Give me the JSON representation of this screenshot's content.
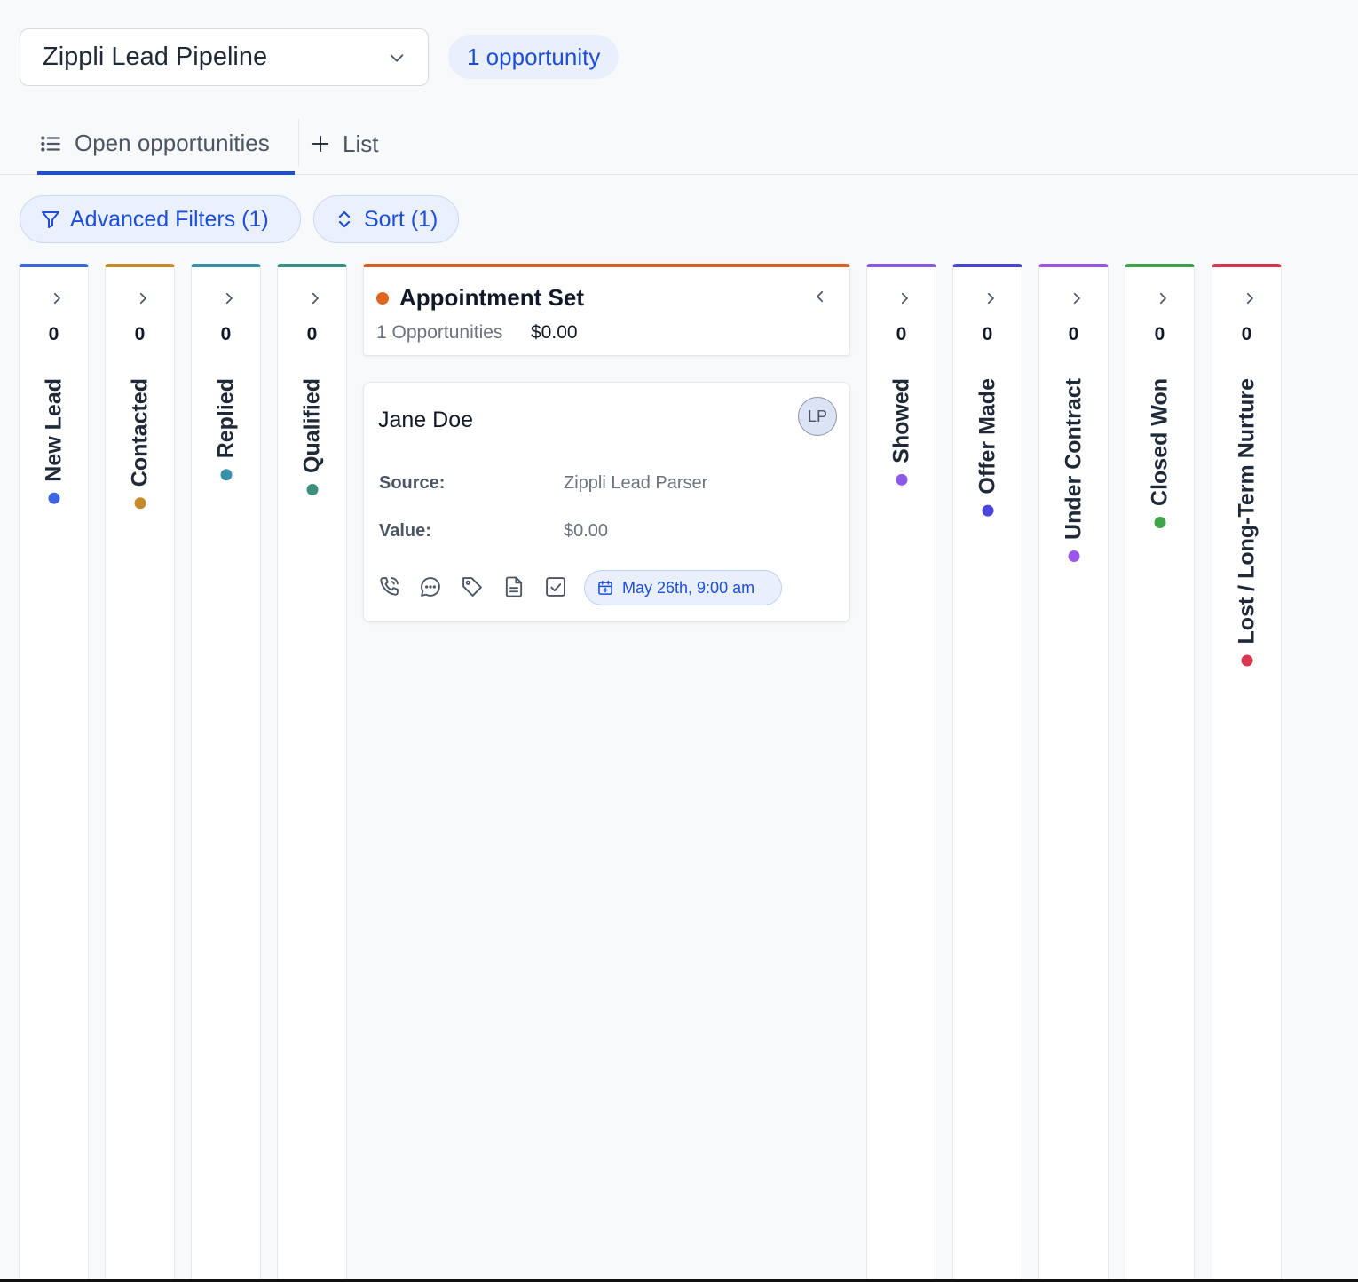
{
  "pipeline": {
    "selected": "Zippli Lead Pipeline",
    "count_label": "1 opportunity"
  },
  "tabs": {
    "open": "Open opportunities",
    "add_list": "List"
  },
  "toolbar": {
    "filters_label": "Advanced Filters (1)",
    "sort_label": "Sort (1)"
  },
  "columns": [
    {
      "name": "New Lead",
      "count": "0",
      "color": "#3b66e0"
    },
    {
      "name": "Contacted",
      "count": "0",
      "color": "#c58a2a"
    },
    {
      "name": "Replied",
      "count": "0",
      "color": "#3a90a8"
    },
    {
      "name": "Qualified",
      "count": "0",
      "color": "#3b9080"
    },
    {
      "name": "Appointment Set",
      "count": "1",
      "color": "#e0651f"
    },
    {
      "name": "Showed",
      "count": "0",
      "color": "#8c5ae8"
    },
    {
      "name": "Offer Made",
      "count": "0",
      "color": "#4b46db"
    },
    {
      "name": "Under Contract",
      "count": "0",
      "color": "#9b57e8"
    },
    {
      "name": "Closed Won",
      "count": "0",
      "color": "#3fa24c"
    },
    {
      "name": "Lost / Long-Term Nurture",
      "count": "0",
      "color": "#d93850"
    }
  ],
  "expanded": {
    "title": "Appointment Set",
    "opportunities_label": "1 Opportunities",
    "amount": "$0.00"
  },
  "card": {
    "name": "Jane Doe",
    "avatar": "LP",
    "source_label": "Source:",
    "source_value": "Zippli Lead Parser",
    "value_label": "Value:",
    "value_value": "$0.00",
    "appointment": "May 26th, 9:00 am",
    "icons": [
      "phone-icon",
      "chat-icon",
      "tag-icon",
      "note-icon",
      "task-icon"
    ]
  }
}
